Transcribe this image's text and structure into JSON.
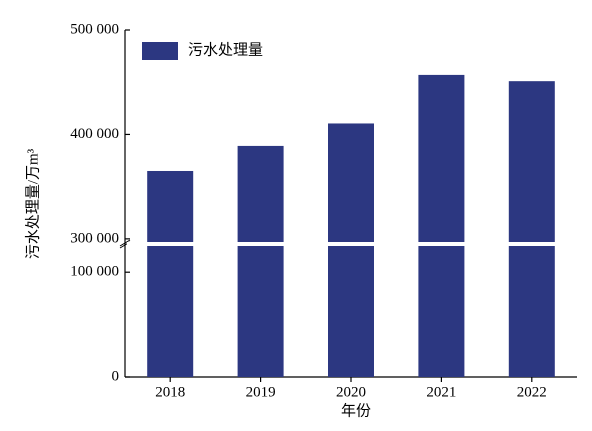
{
  "chart_data": {
    "type": "bar",
    "x_label": "年份",
    "y_label": "污水处理量/万m³",
    "categories": [
      "2018",
      "2019",
      "2020",
      "2021",
      "2022"
    ],
    "series": [
      {
        "name": "污水处理量",
        "color": "#2c3781",
        "values": [
          365000,
          389000,
          410500,
          457000,
          451000
        ]
      }
    ],
    "ylim": [
      0,
      500000
    ],
    "y_break": [
      125000,
      297000
    ],
    "yticks": [
      {
        "value": 0,
        "label": "0"
      },
      {
        "value": 100000,
        "label": "100 000"
      },
      {
        "value": 300000,
        "label": "300 000"
      },
      {
        "value": 400000,
        "label": "400 000"
      },
      {
        "value": 500000,
        "label": "500 000"
      }
    ],
    "legend": "upper left",
    "grid": false
  }
}
